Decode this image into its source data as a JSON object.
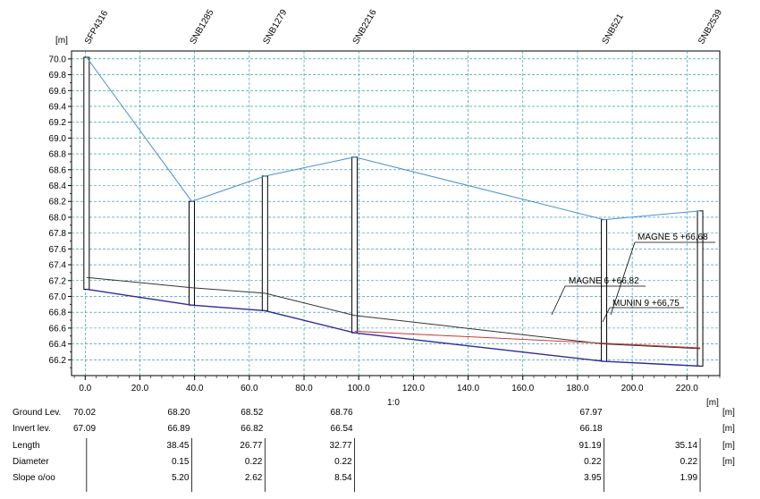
{
  "chart_data": {
    "type": "line",
    "y_unit_label": "[m]",
    "x_unit_label": "[m]",
    "scale_label": "1:0",
    "xlim": [
      -5,
      232
    ],
    "ylim": [
      66.0,
      70.1
    ],
    "x_ticks": [
      "0.0",
      "20.0",
      "40.0",
      "60.0",
      "80.0",
      "100.0",
      "120.0",
      "140.0",
      "160.0",
      "180.0",
      "200.0",
      "220.0"
    ],
    "x_tick_values": [
      0,
      20,
      40,
      60,
      80,
      100,
      120,
      140,
      160,
      180,
      200,
      220
    ],
    "y_ticks": [
      "70.0",
      "69.8",
      "69.6",
      "69.4",
      "69.2",
      "69.0",
      "68.8",
      "68.6",
      "68.4",
      "68.2",
      "68.0",
      "67.8",
      "67.6",
      "67.4",
      "67.2",
      "67.0",
      "66.8",
      "66.6",
      "66.4",
      "66.2"
    ],
    "y_tick_values": [
      70.0,
      69.8,
      69.6,
      69.4,
      69.2,
      69.0,
      68.8,
      68.6,
      68.4,
      68.2,
      68.0,
      67.8,
      67.6,
      67.4,
      67.2,
      67.0,
      66.8,
      66.6,
      66.4,
      66.2
    ],
    "grid": true,
    "manholes": [
      {
        "name": "SFP4316",
        "x": 0.5,
        "ground": 70.02,
        "bottom": 67.09
      },
      {
        "name": "SNB1285",
        "x": 38.95,
        "ground": 68.2,
        "bottom": 66.89
      },
      {
        "name": "SNB1279",
        "x": 65.72,
        "ground": 68.52,
        "bottom": 66.82
      },
      {
        "name": "SNB2216",
        "x": 98.49,
        "ground": 68.76,
        "bottom": 66.54
      },
      {
        "name": "SNB521",
        "x": 189.68,
        "ground": 67.97,
        "bottom": 66.18
      },
      {
        "name": "SNB2539",
        "x": 224.82,
        "ground": 68.08,
        "bottom": 66.12
      }
    ],
    "series": [
      {
        "key": "ground",
        "x": [
          0.5,
          38.95,
          65.72,
          98.49,
          189.68,
          224.82
        ],
        "y": [
          70.02,
          68.2,
          68.52,
          68.76,
          67.97,
          68.08
        ],
        "color": "#4a90d9"
      },
      {
        "key": "crown",
        "x": [
          0.5,
          38.95,
          65.72,
          98.49,
          189.68,
          224.82
        ],
        "y": [
          67.24,
          67.11,
          67.04,
          66.76,
          66.4,
          66.34
        ],
        "color": "#333333"
      },
      {
        "key": "invert",
        "x": [
          0.5,
          38.95,
          65.72,
          98.49,
          189.68,
          224.82
        ],
        "y": [
          67.09,
          66.89,
          66.82,
          66.54,
          66.18,
          66.12
        ],
        "color": "#2b2b9e"
      },
      {
        "key": "water",
        "x": [
          98.49,
          224.82
        ],
        "y": [
          66.56,
          66.35
        ],
        "color": "#cc3333"
      }
    ],
    "annotations": [
      {
        "text": "MAGNE 5 +66,68",
        "anchor_x": 189.68,
        "anchor_y": 66.18
      },
      {
        "text": "MAGNE 6 +66,82",
        "anchor_x": 170.0,
        "anchor_y": 66.75
      },
      {
        "text": "MUNIN 9 +66,75",
        "anchor_x": 188.0,
        "anchor_y": 66.6
      }
    ]
  },
  "table": {
    "unit_m": "[m]",
    "rows": [
      {
        "label": "Ground Lev.",
        "unit": "[m]",
        "node_values": [
          "70.02",
          "68.20",
          "68.52",
          "68.76",
          "67.97",
          ""
        ]
      },
      {
        "label": "Invert lev.",
        "unit": "[m]",
        "node_values": [
          "67.09",
          "66.89",
          "66.82",
          "66.54",
          "66.18",
          ""
        ]
      },
      {
        "label": "Length",
        "unit": "[m]",
        "seg_values": [
          "38.45",
          "26.77",
          "32.77",
          "91.19",
          "35.14"
        ]
      },
      {
        "label": "Diameter",
        "unit": "[m]",
        "seg_values": [
          "0.15",
          "0.22",
          "0.22",
          "0.22",
          "0.22"
        ]
      },
      {
        "label": "Slope o/oo",
        "unit": "",
        "seg_values": [
          "5.20",
          "2.62",
          "8.54",
          "3.95",
          "1.99"
        ]
      }
    ]
  }
}
